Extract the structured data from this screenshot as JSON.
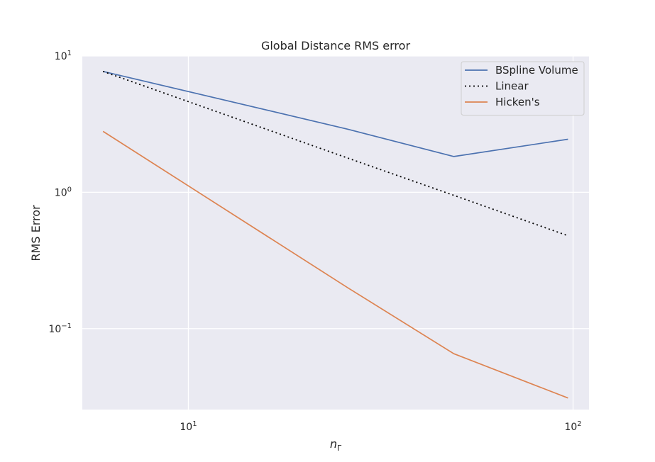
{
  "chart_data": {
    "type": "line",
    "title": "Global Distance RMS error",
    "xlabel": "n",
    "xlabel_subscript": "Γ",
    "ylabel": "RMS Error",
    "xscale": "log",
    "yscale": "log",
    "xlim": [
      5.3,
      110
    ],
    "ylim": [
      0.0255,
      10
    ],
    "x_ticks": [
      {
        "value": 10,
        "base": "10",
        "exp": "1"
      },
      {
        "value": 100,
        "base": "10",
        "exp": "2"
      }
    ],
    "y_ticks": [
      {
        "value": 0.1,
        "base": "10",
        "exp": "−1"
      },
      {
        "value": 1,
        "base": "10",
        "exp": "0"
      },
      {
        "value": 10,
        "base": "10",
        "exp": "1"
      }
    ],
    "grid": true,
    "legend_position": "upper right",
    "background": "#eaeaf2",
    "series": [
      {
        "name": "BSpline Volume",
        "color": "#4c72b0",
        "dash": "solid",
        "x": [
          6,
          26,
          49,
          97
        ],
        "y": [
          7.7,
          2.9,
          1.83,
          2.45
        ]
      },
      {
        "name": "Linear",
        "color": "#000000",
        "dash": "dotted",
        "x": [
          6,
          26,
          49,
          97
        ],
        "y": [
          7.7,
          1.78,
          0.95,
          0.48
        ]
      },
      {
        "name": "Hicken's",
        "color": "#dd8452",
        "dash": "solid",
        "x": [
          6,
          26,
          49,
          97
        ],
        "y": [
          2.8,
          0.199,
          0.0655,
          0.031
        ]
      }
    ]
  }
}
